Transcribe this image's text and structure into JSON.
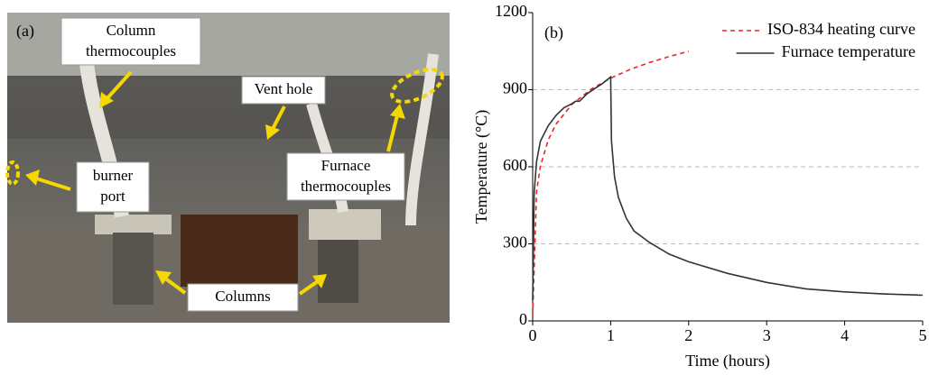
{
  "panel_a": {
    "label": "(a)",
    "annotations": [
      {
        "lines": [
          "Column",
          "thermocouples"
        ]
      },
      {
        "lines": [
          "Vent hole"
        ]
      },
      {
        "lines": [
          "burner",
          "port"
        ]
      },
      {
        "lines": [
          "Furnace",
          "thermocouples"
        ]
      },
      {
        "lines": [
          "Columns"
        ]
      }
    ]
  },
  "chart_data": {
    "type": "line",
    "panel_label": "(b)",
    "xlabel": "Time (hours)",
    "ylabel": "Temperature (°C)",
    "xlim": [
      0,
      5
    ],
    "xticks": [
      0,
      1,
      2,
      3,
      4,
      5
    ],
    "ylim": [
      0,
      1200
    ],
    "yticks": [
      0,
      300,
      600,
      900,
      1200
    ],
    "grid": true,
    "legend": "top-right",
    "series": [
      {
        "name": "ISO-834 heating curve",
        "color": "#e8262a",
        "dash": true,
        "x": [
          0,
          0.05,
          0.1,
          0.2,
          0.3,
          0.5,
          0.75,
          1,
          1.25,
          1.5,
          1.75,
          2
        ],
        "values": [
          20,
          502,
          603,
          705,
          766,
          842,
          902,
          945,
          979,
          1006,
          1029,
          1049
        ]
      },
      {
        "name": "Furnace temperature",
        "color": "#333333",
        "dash": false,
        "x": [
          0,
          0.02,
          0.05,
          0.1,
          0.2,
          0.3,
          0.4,
          0.5,
          0.55,
          0.6,
          0.65,
          0.7,
          0.8,
          0.9,
          1.0,
          1.01,
          1.05,
          1.1,
          1.2,
          1.3,
          1.5,
          1.75,
          2,
          2.5,
          3,
          3.5,
          4,
          4.5,
          5
        ],
        "values": [
          80,
          500,
          620,
          700,
          760,
          800,
          830,
          845,
          855,
          855,
          870,
          885,
          905,
          925,
          950,
          700,
          560,
          480,
          400,
          350,
          305,
          260,
          230,
          185,
          150,
          125,
          113,
          105,
          100
        ]
      }
    ]
  }
}
